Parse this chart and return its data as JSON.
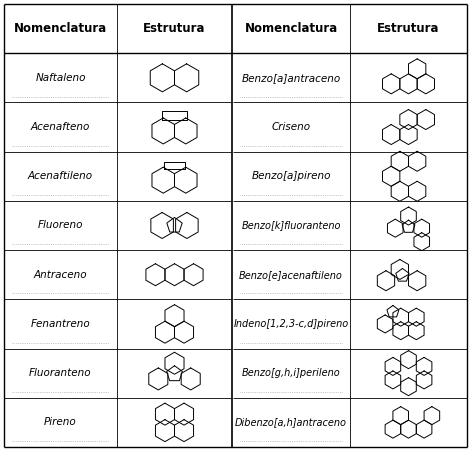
{
  "header": [
    "Nomenclatura",
    "Estrutura",
    "Nomenclatura",
    "Estrutura"
  ],
  "left_compounds": [
    "Naftaleno",
    "Acenafteno",
    "Acenaftileno",
    "Fluoreno",
    "Antraceno",
    "Fenantreno",
    "Fluoranteno",
    "Pireno"
  ],
  "right_compounds": [
    "Benzo[a]antraceno",
    "Criseno",
    "Benzo[a]pireno",
    "Benzo[k]fluoranteno",
    "Benzo[e]acenaftileno",
    "Indeno[1,2,3-c,d]pireno",
    "Benzo[g,h,i]perileno",
    "Dibenzo[a,h]antraceno"
  ],
  "bg_color": "#ffffff",
  "text_color": "#000000",
  "font_size": 7.5,
  "header_font_size": 8.5,
  "fig_width": 4.71,
  "fig_height": 4.51,
  "dpi": 100
}
